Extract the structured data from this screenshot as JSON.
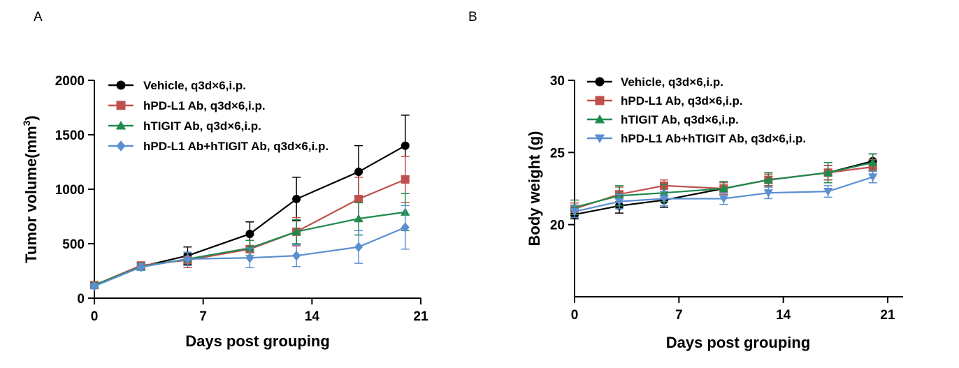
{
  "colors": {
    "Vehicle": "#000000",
    "PDL1": "#c0504d",
    "TIGIT": "#1f8a4c",
    "Combo": "#5b8fd0"
  },
  "chart_data": [
    {
      "panel": "A",
      "type": "line",
      "xlabel": "Days post grouping",
      "ylabel": "Tumor volume(mm",
      "ylabel_sup": "3",
      "ylabel_close": ")",
      "xlim": [
        0,
        21
      ],
      "ylim": [
        0,
        2000
      ],
      "xticks": [
        0,
        7,
        14,
        21
      ],
      "yticks": [
        0,
        500,
        1000,
        1500,
        2000
      ],
      "legend_position": "top-left",
      "x": [
        0,
        3,
        6,
        10,
        13,
        17,
        20
      ],
      "series": [
        {
          "name": "Vehicle, q3d×6,i.p.",
          "color": "#000000",
          "marker": "circle",
          "values": [
            120,
            290,
            390,
            590,
            910,
            1160,
            1400
          ],
          "errors": [
            20,
            30,
            80,
            110,
            200,
            240,
            280
          ]
        },
        {
          "name": "hPD-L1 Ab, q3d×6,i.p.",
          "color": "#c0504d",
          "marker": "square",
          "values": [
            120,
            300,
            350,
            450,
            610,
            910,
            1090
          ],
          "errors": [
            20,
            30,
            70,
            80,
            130,
            200,
            210
          ]
        },
        {
          "name": "hTIGIT Ab, q3d×6,i.p.",
          "color": "#1f8a4c",
          "marker": "triangle-up",
          "values": [
            120,
            290,
            360,
            460,
            610,
            730,
            790
          ],
          "errors": [
            20,
            30,
            60,
            70,
            110,
            150,
            170
          ]
        },
        {
          "name": "hPD-L1 Ab+hTIGIT Ab, q3d×6,i.p.",
          "color": "#5b8fd0",
          "marker": "diamond",
          "values": [
            110,
            285,
            360,
            370,
            390,
            470,
            650
          ],
          "errors": [
            20,
            30,
            60,
            90,
            100,
            150,
            200
          ]
        }
      ]
    },
    {
      "panel": "B",
      "type": "line",
      "xlabel": "Days post grouping",
      "ylabel": "Body weight (g)",
      "xlim": [
        0,
        21
      ],
      "ylim": [
        15,
        30
      ],
      "xticks": [
        0,
        7,
        14,
        21
      ],
      "yticks": [
        20,
        25,
        30
      ],
      "legend_position": "top-left",
      "x": [
        0,
        3,
        6,
        10,
        13,
        17,
        20
      ],
      "series": [
        {
          "name": "Vehicle, q3d×6,i.p.",
          "color": "#000000",
          "marker": "circle",
          "values": [
            20.7,
            21.3,
            21.7,
            22.5,
            23.1,
            23.6,
            24.4
          ],
          "errors": [
            0.3,
            0.5,
            0.5,
            0.4,
            0.4,
            0.5,
            0.5
          ]
        },
        {
          "name": "hPD-L1 Ab, q3d×6,i.p.",
          "color": "#c0504d",
          "marker": "square",
          "values": [
            21.1,
            22.1,
            22.7,
            22.5,
            23.1,
            23.6,
            24.0
          ],
          "errors": [
            0.4,
            0.5,
            0.4,
            0.4,
            0.4,
            0.5,
            0.5
          ]
        },
        {
          "name": "hTIGIT Ab, q3d×6,i.p.",
          "color": "#1f8a4c",
          "marker": "triangle-up",
          "values": [
            21.2,
            22.0,
            22.2,
            22.5,
            23.1,
            23.6,
            24.3
          ],
          "errors": [
            0.5,
            0.7,
            0.6,
            0.5,
            0.5,
            0.7,
            0.6
          ]
        },
        {
          "name": "hPD-L1 Ab+hTIGIT Ab, q3d×6,i.p.",
          "color": "#5b8fd0",
          "marker": "triangle-down",
          "values": [
            20.9,
            21.6,
            21.8,
            21.8,
            22.2,
            22.3,
            23.3
          ],
          "errors": [
            0.4,
            0.5,
            0.5,
            0.4,
            0.4,
            0.4,
            0.4
          ]
        }
      ]
    }
  ]
}
